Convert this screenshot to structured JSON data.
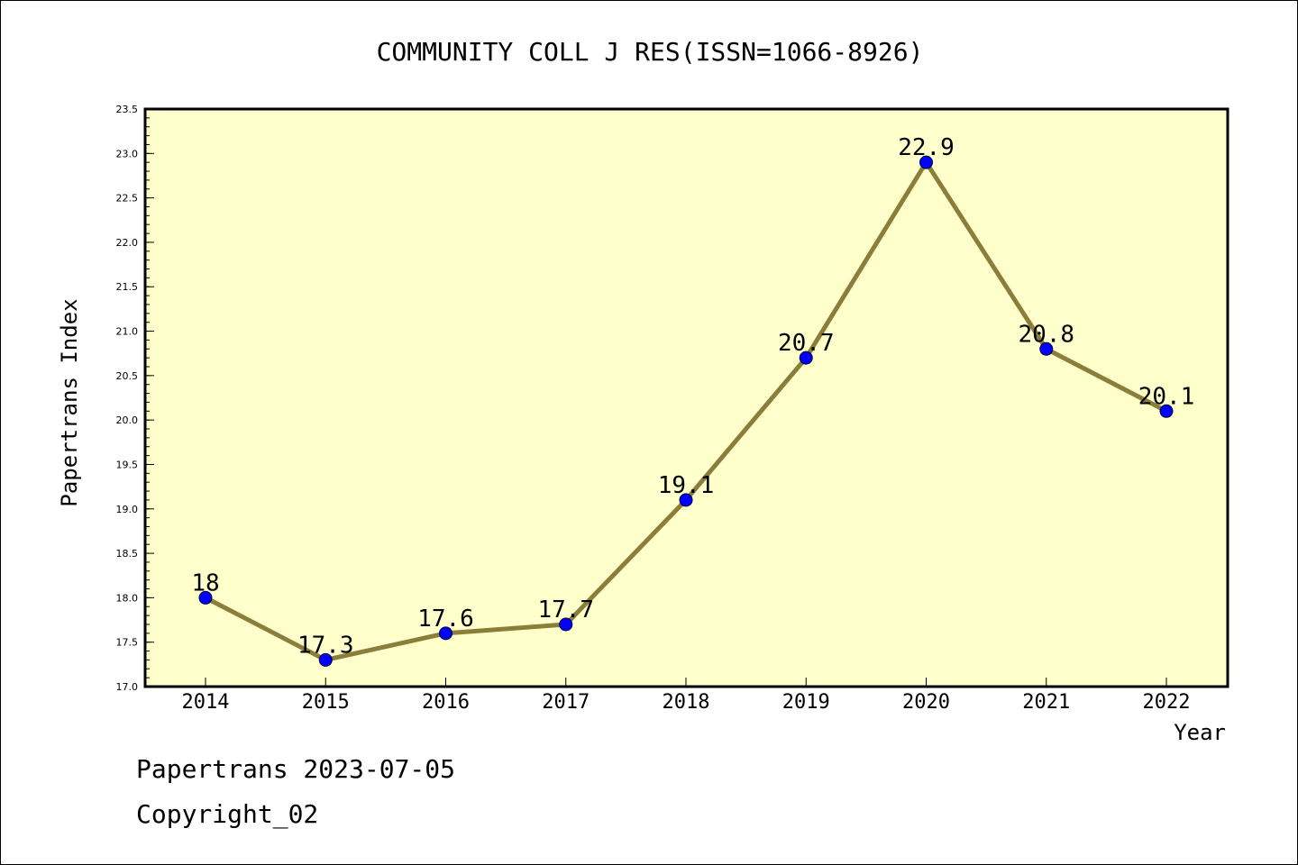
{
  "chart_data": {
    "type": "line",
    "title": "COMMUNITY COLL J RES(ISSN=1066-8926)",
    "xlabel": "Year",
    "ylabel": "Papertrans Index",
    "categories": [
      "2014",
      "2015",
      "2016",
      "2017",
      "2018",
      "2019",
      "2020",
      "2021",
      "2022"
    ],
    "values": [
      18,
      17.3,
      17.6,
      17.7,
      19.1,
      20.7,
      22.9,
      20.8,
      20.1
    ],
    "data_labels": [
      "18",
      "17.3",
      "17.6",
      "17.7",
      "19.1",
      "20.7",
      "22.9",
      "20.8",
      "20.1"
    ],
    "ylim": [
      17.0,
      23.5
    ],
    "y_ticks": [
      "17.0",
      "17.5",
      "18.0",
      "18.5",
      "19.0",
      "19.5",
      "20.0",
      "20.5",
      "21.0",
      "21.5",
      "22.0",
      "22.5",
      "23.0",
      "23.5"
    ],
    "grid": false,
    "legend": "none",
    "colors": {
      "plot_background": "#ffffcc",
      "line": "#8b7d3a",
      "marker": "#0000ff",
      "axis": "#000000"
    }
  },
  "footer": {
    "line1": "Papertrans 2023-07-05",
    "line2": "Copyright_02"
  }
}
